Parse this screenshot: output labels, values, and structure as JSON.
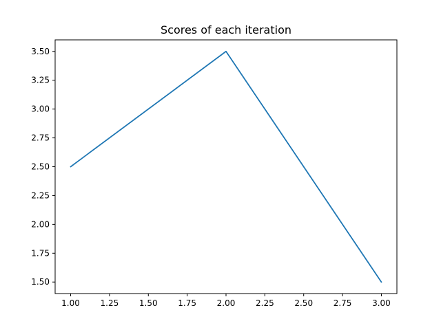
{
  "chart_data": {
    "type": "line",
    "title": "Scores of each iteration",
    "xlabel": "",
    "ylabel": "",
    "x": [
      1.0,
      2.0,
      3.0
    ],
    "series": [
      {
        "values": [
          2.5,
          3.5,
          1.5
        ],
        "color": "#1f77b4"
      }
    ],
    "xlim": [
      0.9,
      3.1
    ],
    "ylim": [
      1.4,
      3.6
    ],
    "xticks": [
      1.0,
      1.25,
      1.5,
      1.75,
      2.0,
      2.25,
      2.5,
      2.75,
      3.0
    ],
    "xtick_labels": [
      "1.00",
      "1.25",
      "1.50",
      "1.75",
      "2.00",
      "2.25",
      "2.50",
      "2.75",
      "3.00"
    ],
    "yticks": [
      1.5,
      1.75,
      2.0,
      2.25,
      2.5,
      2.75,
      3.0,
      3.25,
      3.5
    ],
    "ytick_labels": [
      "1.50",
      "1.75",
      "2.00",
      "2.25",
      "2.50",
      "2.75",
      "3.00",
      "3.25",
      "3.50"
    ],
    "grid": false,
    "legend": "none"
  }
}
